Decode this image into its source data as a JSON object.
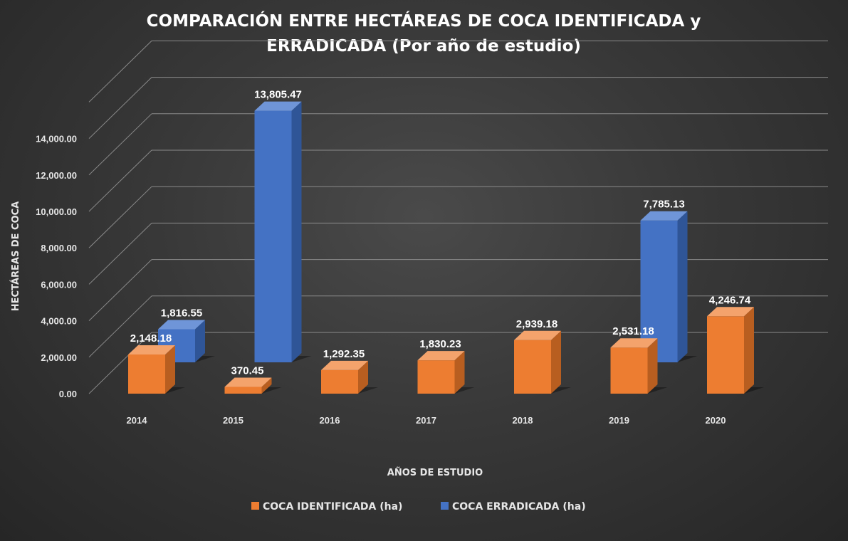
{
  "colors": {
    "identificada_front": "#ED7D31",
    "identificada_top": "#F4A36C",
    "identificada_side": "#B85E20",
    "erradicada_front": "#4472C4",
    "erradicada_top": "#6F95D8",
    "erradicada_side": "#2F5597",
    "gridline": "#8a8a8a"
  },
  "chart_data": {
    "type": "bar",
    "style": "3d-clustered-column",
    "title_line1": "COMPARACIÓN ENTRE HECTÁREAS DE COCA IDENTIFICADA y",
    "title_line2": "ERRADICADA (Por año de estudio)",
    "xlabel": "AÑOS DE ESTUDIO",
    "ylabel": "HECTÁREAS DE COCA",
    "categories": [
      "2014",
      "2015",
      "2016",
      "2017",
      "2018",
      "2019",
      "2020"
    ],
    "ylim": [
      0,
      16000
    ],
    "yticks": [
      0,
      2000,
      4000,
      6000,
      8000,
      10000,
      12000,
      14000
    ],
    "ytick_labels": [
      "0.00",
      "2,000.00",
      "4,000.00",
      "6,000.00",
      "8,000.00",
      "10,000.00",
      "12,000.00",
      "14,000.00"
    ],
    "series": [
      {
        "name": "COCA IDENTIFICADA (ha)",
        "values": [
          2148.18,
          370.45,
          1292.35,
          1830.23,
          2939.18,
          2531.18,
          4246.74
        ],
        "labels": [
          "2,148.18",
          "370.45",
          "1,292.35",
          "1,830.23",
          "2,939.18",
          "2,531.18",
          "4,246.74"
        ]
      },
      {
        "name": "COCA ERRADICADA (ha)",
        "values": [
          1816.55,
          13805.47,
          null,
          null,
          null,
          7785.13,
          null
        ],
        "labels": [
          "1,816.55",
          "13,805.47",
          null,
          null,
          null,
          "7,785.13",
          null
        ]
      }
    ],
    "legend_position": "bottom"
  }
}
